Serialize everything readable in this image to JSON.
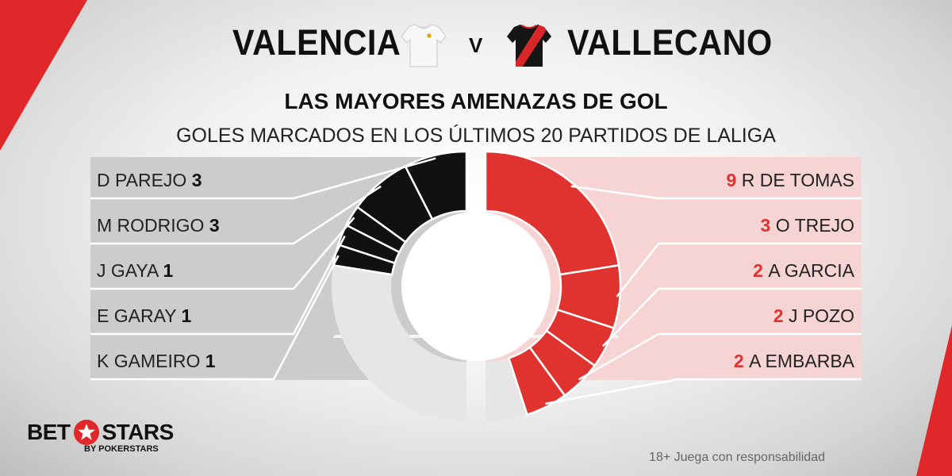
{
  "header": {
    "home_team": "VALENCIA",
    "away_team": "VALLECANO",
    "vs": "V",
    "home_shirt_icon": "white-kit-icon",
    "away_shirt_icon": "black-red-sash-kit-icon"
  },
  "chart_data": {
    "type": "pie",
    "title": "LAS MAYORES AMENAZAS DE GOL",
    "subtitle": "GOLES MARCADOS EN LOS ÚLTIMOS 20 PARTIDOS DE LALIGA",
    "series": [
      {
        "name": "VALENCIA",
        "color": "#111111",
        "remainder_color": "#e6e6e6",
        "total": 20,
        "players": [
          {
            "name": "D PAREJO",
            "goals": 3
          },
          {
            "name": "M RODRIGO",
            "goals": 3
          },
          {
            "name": "J GAYA",
            "goals": 1
          },
          {
            "name": "E GARAY",
            "goals": 1
          },
          {
            "name": "K GAMEIRO",
            "goals": 1
          }
        ]
      },
      {
        "name": "VALLECANO",
        "color": "#e0322e",
        "remainder_color": "#e6e6e6",
        "total": 20,
        "players": [
          {
            "name": "R DE TOMAS",
            "goals": 9
          },
          {
            "name": "O TREJO",
            "goals": 3
          },
          {
            "name": "A GARCIA",
            "goals": 2
          },
          {
            "name": "J POZO",
            "goals": 2
          },
          {
            "name": "A EMBARBA",
            "goals": 2
          }
        ]
      }
    ]
  },
  "footer": {
    "responsible": "18+ Juega con responsabilidad",
    "logo_left": "BET",
    "logo_right": "STARS",
    "logo_sub": "BY POKERSTARS"
  },
  "colors": {
    "accent": "#e0282a",
    "home_panel": "#cccccc",
    "away_panel": "#f6d4d4",
    "away_value": "#e0322e"
  }
}
